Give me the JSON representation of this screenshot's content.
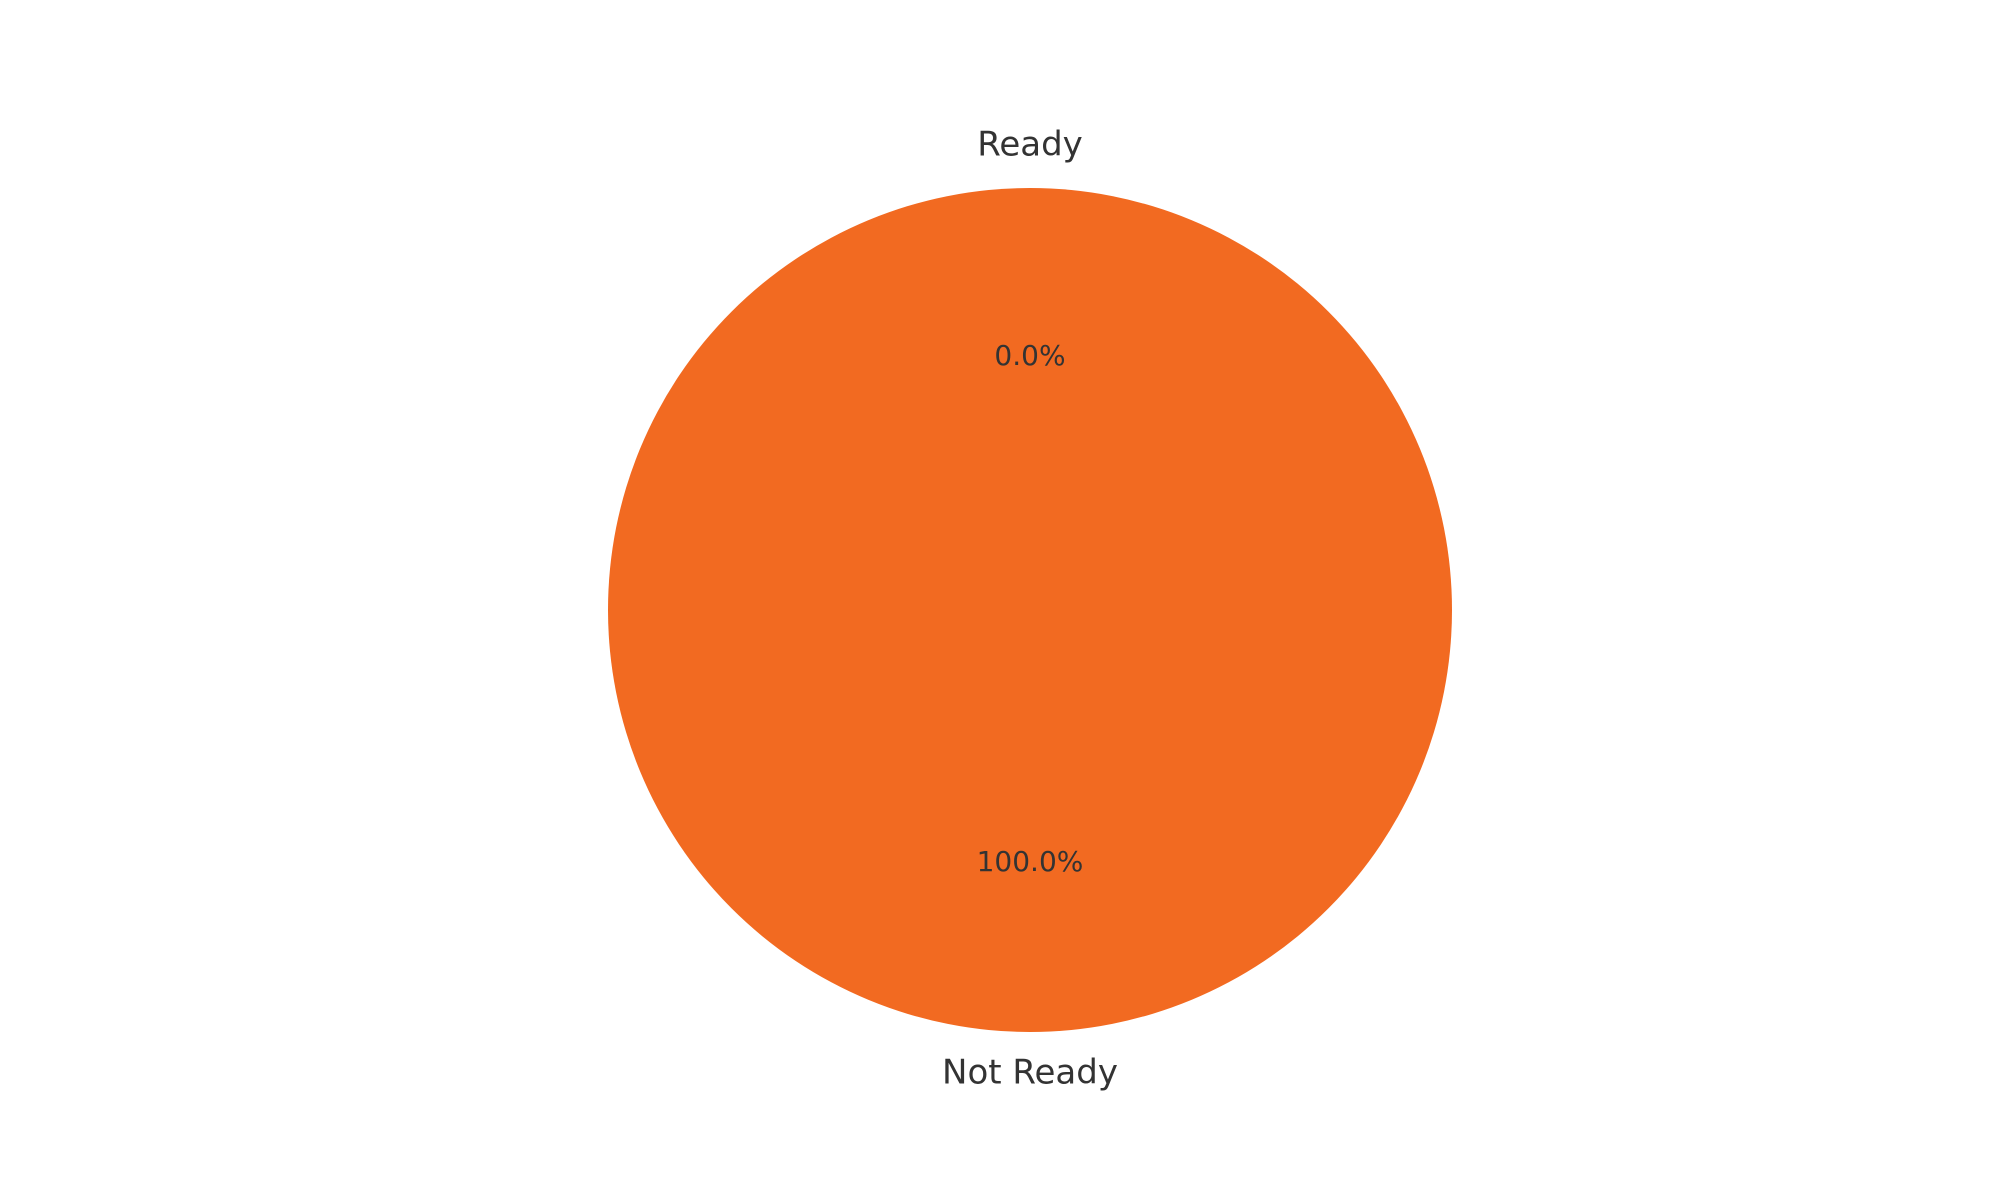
{
  "chart_data": {
    "type": "pie",
    "categories": [
      "Ready",
      "Not Ready"
    ],
    "values": [
      0.0,
      100.0
    ],
    "percent_labels": [
      "0.0%",
      "100.0%"
    ],
    "colors": [
      "#1f77b4",
      "#f26a21"
    ],
    "legend": "none",
    "start_angle": 90,
    "direction": "counterclockwise"
  }
}
